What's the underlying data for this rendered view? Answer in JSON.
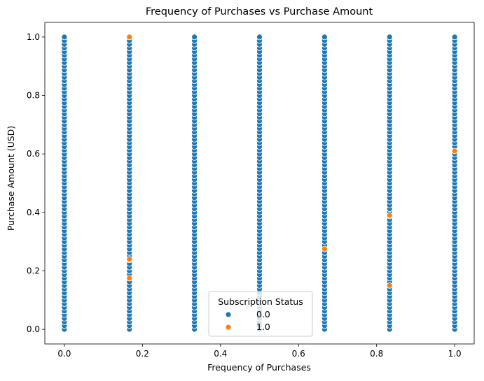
{
  "chart_data": {
    "type": "scatter",
    "title": "Frequency of Purchases vs Purchase Amount",
    "xlabel": "Frequency of Purchases",
    "ylabel": "Purchase Amount (USD)",
    "xlim": [
      -0.05,
      1.05
    ],
    "ylim": [
      -0.05,
      1.05
    ],
    "xticks": [
      "0.0",
      "0.2",
      "0.4",
      "0.6",
      "0.8",
      "1.0"
    ],
    "yticks": [
      "0.0",
      "0.2",
      "0.4",
      "0.6",
      "0.8",
      "1.0"
    ],
    "grid": false,
    "legend": {
      "title": "Subscription Status",
      "placement": "lower-center",
      "entries": [
        "0.0",
        "1.0"
      ]
    },
    "x_levels": [
      0.0,
      0.1667,
      0.3333,
      0.5,
      0.6667,
      0.8333,
      1.0
    ],
    "series": [
      {
        "name": "0.0",
        "color": "#1f77b4",
        "points": "y from 0.0 to 1.0 at every 0.0125 step for each x level"
      },
      {
        "name": "1.0",
        "color": "#ff7f0e",
        "x": [
          0.1667,
          0.1667,
          0.1667,
          0.6667,
          0.8333,
          0.8333,
          1.0
        ],
        "y": [
          1.0,
          0.24,
          0.175,
          0.275,
          0.39,
          0.15,
          0.61
        ]
      }
    ]
  }
}
